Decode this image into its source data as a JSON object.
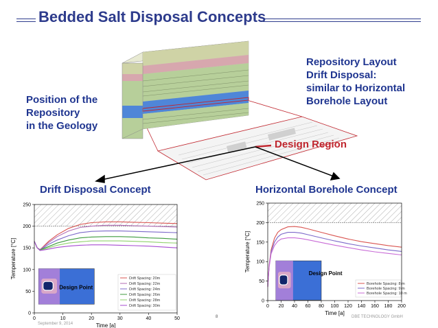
{
  "slide": {
    "title": "Bedded Salt Disposal Concepts",
    "position_text": [
      "Position of the",
      "Repository",
      "in the Geology"
    ],
    "layout_text": [
      "Repository Layout",
      "Drift Disposal:",
      "similar to Horizontal",
      "Borehole Layout"
    ],
    "design_region": "Design Region",
    "left_title": "Drift Disposal Concept",
    "right_title": "Horizontal Borehole Concept",
    "page_number": "8",
    "footer_left": "September 9, 2014",
    "footer_right": "DBE TECHNOLOGY GmbH"
  },
  "colors": {
    "title": "#2d3b8c",
    "heading": "#1f3590",
    "design_region": "#c0262e"
  },
  "chart_data": [
    {
      "type": "line",
      "title": "",
      "xlabel": "Time [a]",
      "ylabel": "Temperature [°C]",
      "xlim": [
        0,
        50
      ],
      "ylim": [
        0,
        250
      ],
      "x_ticks": [
        0,
        10,
        20,
        30,
        40,
        50
      ],
      "y_ticks": [
        0,
        50,
        100,
        150,
        200,
        250
      ],
      "hatched_above": 200,
      "inset_label": "Design Point",
      "legend_position": "bottom-right",
      "series": [
        {
          "name": "Drift Spacing: 20m",
          "color": "#d9534f",
          "x": [
            0,
            1,
            2,
            3,
            5,
            8,
            12,
            16,
            20,
            25,
            30,
            35,
            40,
            45,
            50
          ],
          "values": [
            165,
            150,
            146,
            152,
            165,
            180,
            195,
            204,
            208,
            210,
            210,
            209,
            208,
            207,
            206
          ]
        },
        {
          "name": "Drift Spacing: 22m",
          "color": "#b06ab3",
          "x": [
            0,
            1,
            2,
            3,
            5,
            8,
            12,
            16,
            20,
            25,
            30,
            35,
            40,
            45,
            50
          ],
          "values": [
            165,
            150,
            146,
            151,
            162,
            176,
            189,
            197,
            200,
            202,
            202,
            201,
            200,
            199,
            198
          ]
        },
        {
          "name": "Drift Spacing: 24m",
          "color": "#7b68c9",
          "x": [
            0,
            1,
            2,
            3,
            5,
            8,
            12,
            16,
            20,
            25,
            30,
            35,
            40,
            45,
            50
          ],
          "values": [
            165,
            150,
            145,
            149,
            158,
            168,
            178,
            185,
            188,
            189,
            189,
            188,
            187,
            186,
            185
          ]
        },
        {
          "name": "Drift Spacing: 26m",
          "color": "#3c9a3c",
          "x": [
            0,
            1,
            2,
            3,
            5,
            8,
            12,
            16,
            20,
            25,
            30,
            35,
            40,
            45,
            50
          ],
          "values": [
            165,
            150,
            145,
            148,
            153,
            161,
            168,
            173,
            175,
            176,
            176,
            175,
            173,
            172,
            170
          ]
        },
        {
          "name": "Drift Spacing: 28m",
          "color": "#8fd16b",
          "x": [
            0,
            1,
            2,
            3,
            5,
            8,
            12,
            16,
            20,
            25,
            30,
            35,
            40,
            45,
            50
          ],
          "values": [
            165,
            150,
            144,
            146,
            150,
            156,
            161,
            164,
            166,
            166,
            166,
            165,
            164,
            162,
            161
          ]
        },
        {
          "name": "Drift Spacing: 30m",
          "color": "#a64ad1",
          "x": [
            0,
            1,
            2,
            3,
            5,
            8,
            12,
            16,
            20,
            25,
            30,
            35,
            40,
            45,
            50
          ],
          "values": [
            165,
            150,
            144,
            145,
            147,
            151,
            154,
            156,
            157,
            157,
            156,
            155,
            154,
            152,
            150
          ]
        }
      ]
    },
    {
      "type": "line",
      "title": "",
      "xlabel": "Time [a]",
      "ylabel": "Temperature [°C]",
      "xlim": [
        0,
        200
      ],
      "ylim": [
        0,
        250
      ],
      "x_ticks": [
        0,
        20,
        40,
        60,
        80,
        100,
        120,
        140,
        160,
        180,
        200
      ],
      "y_ticks": [
        0,
        50,
        100,
        150,
        200,
        250
      ],
      "hatched_above": 200,
      "inset_label": "Design Point",
      "legend_position": "bottom-right",
      "series": [
        {
          "name": "Borehole Spacing: 8 m",
          "color": "#d9534f",
          "x": [
            0,
            2,
            5,
            10,
            15,
            20,
            30,
            40,
            50,
            60,
            80,
            100,
            120,
            140,
            160,
            180,
            200
          ],
          "values": [
            35,
            90,
            130,
            160,
            175,
            182,
            189,
            190,
            188,
            184,
            175,
            166,
            158,
            151,
            146,
            141,
            137
          ]
        },
        {
          "name": "Borehole Spacing: 9 m",
          "color": "#7b68c9",
          "x": [
            0,
            2,
            5,
            10,
            15,
            20,
            30,
            40,
            50,
            60,
            80,
            100,
            120,
            140,
            160,
            180,
            200
          ],
          "values": [
            35,
            88,
            125,
            150,
            163,
            170,
            175,
            175,
            173,
            169,
            161,
            153,
            146,
            140,
            135,
            130,
            126
          ]
        },
        {
          "name": "Borehole Spacing: 10 m",
          "color": "#c86ad6",
          "x": [
            0,
            2,
            5,
            10,
            15,
            20,
            30,
            40,
            50,
            60,
            80,
            100,
            120,
            140,
            160,
            180,
            200
          ],
          "values": [
            35,
            85,
            120,
            141,
            152,
            158,
            161,
            161,
            159,
            156,
            149,
            142,
            136,
            130,
            125,
            121,
            117
          ]
        }
      ]
    }
  ]
}
